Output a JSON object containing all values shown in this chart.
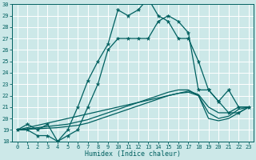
{
  "title": "",
  "xlabel": "Humidex (Indice chaleur)",
  "xlim": [
    -0.5,
    23.5
  ],
  "ylim": [
    18,
    30
  ],
  "yticks": [
    18,
    19,
    20,
    21,
    22,
    23,
    24,
    25,
    26,
    27,
    28,
    29,
    30
  ],
  "xticks": [
    0,
    1,
    2,
    3,
    4,
    5,
    6,
    7,
    8,
    9,
    10,
    11,
    12,
    13,
    14,
    15,
    16,
    17,
    18,
    19,
    20,
    21,
    22,
    23
  ],
  "bg_color": "#cce8e8",
  "grid_color": "#ffffff",
  "line_color": "#006060",
  "hours": [
    0,
    1,
    2,
    3,
    4,
    5,
    6,
    7,
    8,
    9,
    10,
    11,
    12,
    13,
    14,
    15,
    16,
    17,
    18,
    19,
    20,
    21,
    22,
    23
  ],
  "series_with_markers": [
    [
      19.0,
      19.5,
      19.0,
      19.5,
      18.0,
      19.0,
      21.0,
      23.3,
      25.0,
      26.5,
      29.5,
      29.0,
      29.5,
      30.5,
      29.0,
      28.5,
      27.0,
      27.0,
      25.0,
      22.5,
      21.5,
      22.5,
      21.0,
      21.0
    ]
  ],
  "series_no_markers": [
    [
      19.0,
      19.2,
      19.4,
      19.6,
      19.8,
      20.0,
      20.2,
      20.4,
      20.6,
      20.8,
      21.0,
      21.2,
      21.4,
      21.6,
      21.8,
      22.0,
      22.2,
      22.4,
      22.1,
      21.0,
      20.5,
      20.5,
      21.0,
      21.0
    ],
    [
      19.0,
      19.1,
      19.2,
      19.3,
      19.4,
      19.5,
      19.7,
      19.9,
      20.2,
      20.5,
      20.8,
      21.1,
      21.4,
      21.7,
      22.0,
      22.3,
      22.5,
      22.5,
      22.0,
      20.5,
      20.0,
      20.2,
      20.8,
      21.0
    ],
    [
      19.0,
      19.05,
      19.1,
      19.15,
      19.2,
      19.3,
      19.4,
      19.6,
      19.9,
      20.2,
      20.5,
      20.8,
      21.1,
      21.4,
      21.7,
      22.0,
      22.2,
      22.3,
      22.0,
      20.0,
      19.8,
      20.0,
      20.5,
      21.0
    ]
  ],
  "series2_with_markers": [
    [
      19.0,
      19.0,
      18.5,
      18.5,
      18.0,
      18.5,
      19.0,
      21.0,
      23.0,
      26.0,
      27.0,
      27.0,
      27.0,
      27.0,
      28.5,
      29.0,
      28.5,
      27.5,
      22.5,
      22.5,
      21.5,
      20.5,
      20.5,
      21.0
    ]
  ]
}
